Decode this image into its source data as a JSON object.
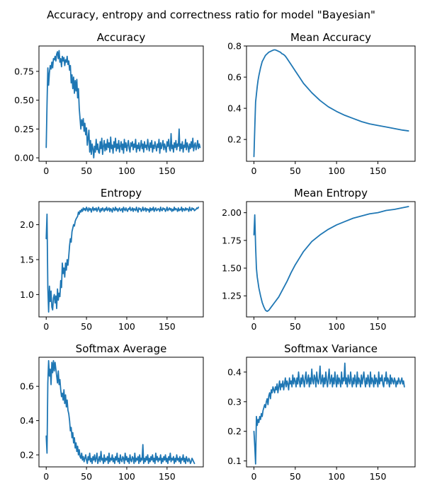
{
  "figure": {
    "suptitle": "Accuracy, entropy and correctness ratio for model \"Bayesian\""
  },
  "colors": {
    "series": "#1f77b4",
    "axes": "#000000",
    "background": "#ffffff"
  },
  "chart_data": [
    {
      "type": "line",
      "title": "Accuracy",
      "xlabel": "",
      "ylabel": "",
      "xlim": [
        -9,
        195
      ],
      "ylim": [
        -0.03,
        0.97
      ],
      "xticks": [
        0,
        50,
        100,
        150
      ],
      "yticks": [
        0.0,
        0.25,
        0.5,
        0.75
      ],
      "ytick_labels": [
        "0.00",
        "0.25",
        "0.50",
        "0.75"
      ],
      "grid": false,
      "series": [
        {
          "x_start": 0,
          "x_step": 1,
          "values": [
            0.09,
            0.46,
            0.78,
            0.63,
            0.74,
            0.8,
            0.77,
            0.83,
            0.78,
            0.86,
            0.85,
            0.88,
            0.84,
            0.9,
            0.92,
            0.86,
            0.93,
            0.83,
            0.86,
            0.79,
            0.88,
            0.84,
            0.87,
            0.8,
            0.85,
            0.83,
            0.88,
            0.81,
            0.84,
            0.76,
            0.8,
            0.65,
            0.72,
            0.6,
            0.7,
            0.56,
            0.67,
            0.58,
            0.68,
            0.52,
            0.6,
            0.43,
            0.34,
            0.25,
            0.33,
            0.28,
            0.34,
            0.23,
            0.3,
            0.2,
            0.26,
            0.11,
            0.17,
            0.24,
            0.05,
            0.15,
            0.03,
            0.12,
            0.08,
            0.0,
            0.1,
            0.05,
            0.16,
            0.07,
            0.12,
            0.05,
            0.04,
            0.14,
            0.08,
            0.17,
            0.03,
            0.1,
            0.15,
            0.06,
            0.12,
            0.07,
            0.16,
            0.09,
            0.13,
            0.05,
            0.18,
            0.08,
            0.11,
            0.04,
            0.14,
            0.09,
            0.17,
            0.06,
            0.12,
            0.08,
            0.15,
            0.05,
            0.1,
            0.14,
            0.07,
            0.12,
            0.04,
            0.16,
            0.09,
            0.13,
            0.06,
            0.11,
            0.15,
            0.08,
            0.05,
            0.13,
            0.1,
            0.14,
            0.07,
            0.12,
            0.09,
            0.16,
            0.05,
            0.11,
            0.08,
            0.13,
            0.06,
            0.1,
            0.15,
            0.08,
            0.12,
            0.05,
            0.14,
            0.09,
            0.11,
            0.07,
            0.16,
            0.1,
            0.06,
            0.13,
            0.09,
            0.15,
            0.05,
            0.11,
            0.08,
            0.14,
            0.1,
            0.06,
            0.12,
            0.09,
            0.16,
            0.04,
            0.13,
            0.08,
            0.11,
            0.15,
            0.07,
            0.12,
            0.09,
            0.05,
            0.14,
            0.1,
            0.16,
            0.08,
            0.06,
            0.21,
            0.08,
            0.11,
            0.05,
            0.13,
            0.09,
            0.15,
            0.07,
            0.12,
            0.1,
            0.25,
            0.06,
            0.12,
            0.08,
            0.14,
            0.05,
            0.11,
            0.09,
            0.16,
            0.07,
            0.13,
            0.1,
            0.05,
            0.12,
            0.08,
            0.14,
            0.09,
            0.17,
            0.06,
            0.11,
            0.13,
            0.07,
            0.1,
            0.15,
            0.08,
            0.12,
            0.09
          ]
        }
      ]
    },
    {
      "type": "line",
      "title": "Mean Accuracy",
      "xlabel": "",
      "ylabel": "",
      "xlim": [
        -9,
        195
      ],
      "ylim": [
        0.06,
        0.8
      ],
      "xticks": [
        0,
        50,
        100,
        150
      ],
      "yticks": [
        0.2,
        0.4,
        0.6,
        0.8
      ],
      "ytick_labels": [
        "0.2",
        "0.4",
        "0.6",
        "0.8"
      ],
      "grid": false,
      "series": [
        {
          "x": [
            0,
            1,
            2,
            3,
            4,
            5,
            6,
            8,
            10,
            12,
            14,
            16,
            18,
            20,
            22,
            24,
            26,
            28,
            30,
            32,
            34,
            36,
            38,
            40,
            45,
            50,
            55,
            60,
            70,
            80,
            90,
            100,
            110,
            120,
            130,
            140,
            150,
            160,
            170,
            180,
            187
          ],
          "values": [
            0.09,
            0.27,
            0.44,
            0.49,
            0.54,
            0.58,
            0.61,
            0.66,
            0.7,
            0.72,
            0.74,
            0.75,
            0.76,
            0.765,
            0.77,
            0.775,
            0.775,
            0.77,
            0.765,
            0.76,
            0.75,
            0.745,
            0.735,
            0.72,
            0.68,
            0.64,
            0.6,
            0.56,
            0.5,
            0.45,
            0.41,
            0.38,
            0.355,
            0.335,
            0.315,
            0.3,
            0.29,
            0.28,
            0.27,
            0.26,
            0.255
          ]
        }
      ]
    },
    {
      "type": "line",
      "title": "Entropy",
      "xlabel": "",
      "ylabel": "",
      "xlim": [
        -9,
        195
      ],
      "ylim": [
        0.68,
        2.33
      ],
      "xticks": [
        0,
        50,
        100,
        150
      ],
      "yticks": [
        1.0,
        1.5,
        2.0
      ],
      "ytick_labels": [
        "1.0",
        "1.5",
        "2.0"
      ],
      "grid": false,
      "series": [
        {
          "x_start": 0,
          "x_step": 1,
          "values": [
            1.8,
            2.15,
            1.1,
            0.75,
            1.12,
            0.9,
            1.05,
            0.82,
            0.78,
            0.95,
            1.0,
            0.88,
            0.98,
            0.8,
            1.08,
            0.92,
            1.02,
            0.97,
            1.2,
            1.1,
            1.45,
            1.3,
            1.38,
            1.25,
            1.45,
            1.35,
            1.5,
            1.42,
            1.55,
            1.7,
            1.8,
            1.75,
            1.9,
            1.95,
            2.0,
            1.98,
            2.05,
            2.08,
            2.1,
            2.12,
            2.18,
            2.15,
            2.2,
            2.18,
            2.22,
            2.19,
            2.24,
            2.21,
            2.23,
            2.2,
            2.25,
            2.22,
            2.19,
            2.24,
            2.21,
            2.23,
            2.18,
            2.22,
            2.25,
            2.2,
            2.23,
            2.21,
            2.24,
            2.19,
            2.22,
            2.25,
            2.21,
            2.18,
            2.23,
            2.2,
            2.24,
            2.22,
            2.19,
            2.23,
            2.21,
            2.25,
            2.2,
            2.22,
            2.24,
            2.19,
            2.23,
            2.21,
            2.18,
            2.24,
            2.22,
            2.2,
            2.25,
            2.21,
            2.23,
            2.19,
            2.22,
            2.24,
            2.2,
            2.21,
            2.23,
            2.18,
            2.25,
            2.22,
            2.2,
            2.24,
            2.21,
            2.19,
            2.23,
            2.22,
            2.25,
            2.2,
            2.21,
            2.24,
            2.19,
            2.23,
            2.22,
            2.2,
            2.25,
            2.21,
            2.18,
            2.24,
            2.22,
            2.23,
            2.19,
            2.21,
            2.25,
            2.2,
            2.22,
            2.24,
            2.19,
            2.23,
            2.21,
            2.22,
            2.18,
            2.24,
            2.2,
            2.23,
            2.21,
            2.25,
            2.19,
            2.22,
            2.24,
            2.2,
            2.21,
            2.23,
            2.22,
            2.19,
            2.25,
            2.21,
            2.2,
            2.24,
            2.22,
            2.23,
            2.19,
            2.21,
            2.25,
            2.2,
            2.22,
            2.24,
            2.21,
            2.23,
            2.19,
            2.22,
            2.2,
            2.25,
            2.21,
            2.23,
            2.22,
            2.19,
            2.24,
            2.2,
            2.22,
            2.21,
            2.25,
            2.19,
            2.23,
            2.22,
            2.2,
            2.24,
            2.21,
            2.23,
            2.22,
            2.19,
            2.25,
            2.21,
            2.2,
            2.24,
            2.22,
            2.23,
            2.2,
            2.21,
            2.22,
            2.24,
            2.23,
            2.25
          ]
        }
      ]
    },
    {
      "type": "line",
      "title": "Mean Entropy",
      "xlabel": "",
      "ylabel": "",
      "xlim": [
        -9,
        195
      ],
      "ylim": [
        1.06,
        2.1
      ],
      "xticks": [
        0,
        50,
        100,
        150
      ],
      "yticks": [
        1.25,
        1.5,
        1.75,
        2.0
      ],
      "ytick_labels": [
        "1.25",
        "1.50",
        "1.75",
        "2.00"
      ],
      "grid": false,
      "series": [
        {
          "x": [
            0,
            1,
            2,
            3,
            4,
            5,
            6,
            8,
            10,
            12,
            14,
            16,
            18,
            20,
            22,
            25,
            28,
            30,
            35,
            40,
            45,
            50,
            55,
            60,
            70,
            80,
            90,
            100,
            110,
            120,
            130,
            140,
            150,
            160,
            170,
            180,
            187
          ],
          "values": [
            1.8,
            1.98,
            1.7,
            1.5,
            1.42,
            1.37,
            1.32,
            1.25,
            1.19,
            1.15,
            1.12,
            1.11,
            1.12,
            1.14,
            1.16,
            1.19,
            1.22,
            1.24,
            1.31,
            1.38,
            1.46,
            1.53,
            1.59,
            1.65,
            1.74,
            1.8,
            1.85,
            1.89,
            1.92,
            1.95,
            1.97,
            1.99,
            2.0,
            2.02,
            2.03,
            2.045,
            2.055
          ]
        }
      ]
    },
    {
      "type": "line",
      "title": "Softmax Average",
      "xlabel": "",
      "ylabel": "",
      "xlim": [
        -9,
        195
      ],
      "ylim": [
        0.13,
        0.77
      ],
      "xticks": [
        0,
        50,
        100,
        150
      ],
      "yticks": [
        0.2,
        0.4,
        0.6
      ],
      "ytick_labels": [
        "0.2",
        "0.4",
        "0.6"
      ],
      "grid": false,
      "series": [
        {
          "x_start": 0,
          "x_step": 1,
          "values": [
            0.31,
            0.21,
            0.62,
            0.75,
            0.66,
            0.7,
            0.61,
            0.74,
            0.68,
            0.75,
            0.69,
            0.74,
            0.7,
            0.66,
            0.62,
            0.69,
            0.61,
            0.64,
            0.58,
            0.54,
            0.56,
            0.52,
            0.58,
            0.5,
            0.55,
            0.48,
            0.52,
            0.46,
            0.44,
            0.4,
            0.34,
            0.36,
            0.3,
            0.33,
            0.27,
            0.3,
            0.24,
            0.27,
            0.22,
            0.25,
            0.2,
            0.23,
            0.19,
            0.18,
            0.21,
            0.17,
            0.19,
            0.16,
            0.18,
            0.2,
            0.17,
            0.15,
            0.19,
            0.17,
            0.21,
            0.16,
            0.18,
            0.15,
            0.19,
            0.17,
            0.2,
            0.16,
            0.18,
            0.21,
            0.15,
            0.17,
            0.19,
            0.16,
            0.22,
            0.17,
            0.18,
            0.15,
            0.2,
            0.16,
            0.18,
            0.17,
            0.19,
            0.15,
            0.21,
            0.16,
            0.18,
            0.17,
            0.2,
            0.16,
            0.18,
            0.15,
            0.19,
            0.17,
            0.21,
            0.16,
            0.18,
            0.15,
            0.2,
            0.17,
            0.16,
            0.19,
            0.18,
            0.15,
            0.21,
            0.17,
            0.19,
            0.16,
            0.18,
            0.15,
            0.2,
            0.17,
            0.16,
            0.19,
            0.18,
            0.15,
            0.21,
            0.16,
            0.18,
            0.17,
            0.19,
            0.15,
            0.2,
            0.16,
            0.18,
            0.17,
            0.26,
            0.15,
            0.18,
            0.16,
            0.19,
            0.17,
            0.2,
            0.15,
            0.18,
            0.16,
            0.19,
            0.17,
            0.2,
            0.16,
            0.18,
            0.15,
            0.21,
            0.17,
            0.19,
            0.16,
            0.18,
            0.17,
            0.2,
            0.15,
            0.18,
            0.16,
            0.19,
            0.17,
            0.2,
            0.16,
            0.18,
            0.15,
            0.19,
            0.17,
            0.21,
            0.16,
            0.18,
            0.17,
            0.19,
            0.15,
            0.18,
            0.16,
            0.2,
            0.17,
            0.18,
            0.16,
            0.19,
            0.15,
            0.18,
            0.17,
            0.2,
            0.16,
            0.18,
            0.15,
            0.19,
            0.17,
            0.16,
            0.18,
            0.17,
            0.15,
            0.16,
            0.18,
            0.17,
            0.16,
            0.15
          ]
        }
      ]
    },
    {
      "type": "line",
      "title": "Softmax Variance",
      "xlabel": "",
      "ylabel": "",
      "xlim": [
        -9,
        195
      ],
      "ylim": [
        0.08,
        0.45
      ],
      "xticks": [
        0,
        50,
        100,
        150
      ],
      "yticks": [
        0.1,
        0.2,
        0.3,
        0.4
      ],
      "ytick_labels": [
        "0.1",
        "0.2",
        "0.3",
        "0.4"
      ],
      "grid": false,
      "series": [
        {
          "x_start": 0,
          "x_step": 1,
          "values": [
            0.2,
            0.15,
            0.09,
            0.25,
            0.22,
            0.24,
            0.23,
            0.25,
            0.24,
            0.26,
            0.25,
            0.27,
            0.28,
            0.29,
            0.28,
            0.3,
            0.31,
            0.29,
            0.32,
            0.33,
            0.31,
            0.34,
            0.33,
            0.35,
            0.34,
            0.33,
            0.35,
            0.34,
            0.36,
            0.33,
            0.35,
            0.37,
            0.34,
            0.36,
            0.35,
            0.37,
            0.34,
            0.36,
            0.38,
            0.35,
            0.37,
            0.36,
            0.34,
            0.38,
            0.36,
            0.37,
            0.35,
            0.39,
            0.36,
            0.38,
            0.37,
            0.35,
            0.38,
            0.36,
            0.4,
            0.37,
            0.35,
            0.38,
            0.36,
            0.39,
            0.37,
            0.35,
            0.38,
            0.4,
            0.36,
            0.37,
            0.39,
            0.35,
            0.38,
            0.36,
            0.41,
            0.37,
            0.36,
            0.39,
            0.38,
            0.35,
            0.4,
            0.37,
            0.36,
            0.38,
            0.42,
            0.36,
            0.37,
            0.39,
            0.35,
            0.38,
            0.36,
            0.4,
            0.37,
            0.35,
            0.38,
            0.41,
            0.36,
            0.37,
            0.39,
            0.35,
            0.38,
            0.36,
            0.4,
            0.37,
            0.35,
            0.39,
            0.36,
            0.38,
            0.37,
            0.35,
            0.4,
            0.36,
            0.38,
            0.37,
            0.43,
            0.36,
            0.38,
            0.35,
            0.39,
            0.37,
            0.36,
            0.4,
            0.37,
            0.35,
            0.38,
            0.36,
            0.39,
            0.37,
            0.35,
            0.4,
            0.36,
            0.38,
            0.37,
            0.35,
            0.39,
            0.36,
            0.38,
            0.4,
            0.37,
            0.35,
            0.38,
            0.36,
            0.39,
            0.37,
            0.35,
            0.4,
            0.36,
            0.38,
            0.37,
            0.35,
            0.39,
            0.36,
            0.38,
            0.37,
            0.35,
            0.4,
            0.36,
            0.38,
            0.37,
            0.39,
            0.36,
            0.35,
            0.38,
            0.37,
            0.4,
            0.36,
            0.38,
            0.37,
            0.35,
            0.39,
            0.36,
            0.38,
            0.37,
            0.36,
            0.38,
            0.37,
            0.35,
            0.37,
            0.36,
            0.38,
            0.37,
            0.36,
            0.37,
            0.38,
            0.36,
            0.37,
            0.35
          ]
        }
      ]
    }
  ]
}
